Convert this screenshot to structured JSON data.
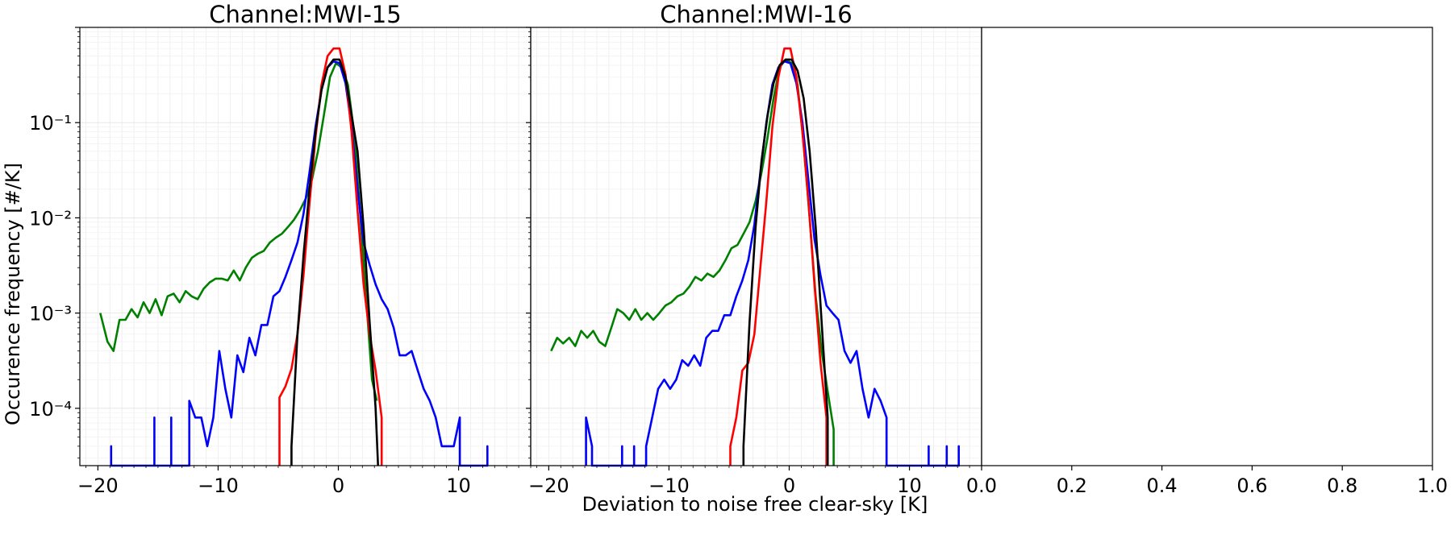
{
  "figure": {
    "xlabel": "Deviation to noise free clear-sky [K]",
    "ylabel": "Occurence frequency [#/K]"
  },
  "chart_data": [
    {
      "type": "line",
      "title": "Channel:MWI-15",
      "yscale": "log",
      "ylim": [
        2.5e-05,
        1.0
      ],
      "xlim": [
        -21.5,
        16.0
      ],
      "xticks": [
        -20,
        -10,
        0,
        10
      ],
      "xtick_labels": [
        "−20",
        "−10",
        "0",
        "10"
      ],
      "yticks": [
        0.0001,
        0.001,
        0.01,
        0.1
      ],
      "ytick_labels": [
        "10⁻⁴",
        "10⁻³",
        "10⁻²",
        "10⁻¹"
      ],
      "grid": true,
      "series": [
        {
          "color": "#008000",
          "x": [
            -19.8,
            -19.2,
            -18.7,
            -18.2,
            -17.7,
            -17.2,
            -16.7,
            -16.2,
            -15.7,
            -15.2,
            -14.7,
            -14.2,
            -13.7,
            -13.2,
            -12.7,
            -12.2,
            -11.7,
            -11.2,
            -10.7,
            -10.2,
            -9.7,
            -9.2,
            -8.7,
            -8.2,
            -7.7,
            -7.2,
            -6.7,
            -6.2,
            -5.7,
            -5.2,
            -4.7,
            -4.2,
            -3.7,
            -3.2,
            -2.7,
            -2.2,
            -1.7,
            -1.2,
            -0.7,
            -0.2,
            0.3,
            0.8,
            1.3,
            1.8,
            2.3,
            2.8,
            3.2
          ],
          "y": [
            0.001,
            0.0005,
            0.0004,
            0.00085,
            0.00085,
            0.0011,
            0.0009,
            0.0013,
            0.001,
            0.0014,
            0.00095,
            0.0015,
            0.0016,
            0.0013,
            0.0017,
            0.0015,
            0.0014,
            0.0018,
            0.0021,
            0.0023,
            0.0023,
            0.0022,
            0.0028,
            0.0022,
            0.003,
            0.0038,
            0.0042,
            0.0045,
            0.0055,
            0.0062,
            0.0068,
            0.008,
            0.0095,
            0.012,
            0.016,
            0.025,
            0.05,
            0.12,
            0.3,
            0.42,
            0.38,
            0.25,
            0.08,
            0.012,
            0.0015,
            0.0002,
            0.00012
          ]
        },
        {
          "color": "#0000ff",
          "x": [
            -18.9,
            -18.9,
            -18.9,
            -15.3,
            -15.3,
            -15.3,
            -13.9,
            -13.9,
            -13.9,
            -12.4,
            -12.4,
            -11.9,
            -11.4,
            -10.9,
            -10.4,
            -9.9,
            -9.4,
            -8.9,
            -8.4,
            -7.9,
            -7.4,
            -6.9,
            -6.4,
            -5.9,
            -5.4,
            -4.9,
            -4.4,
            -3.9,
            -3.4,
            -2.9,
            -2.4,
            -1.9,
            -1.4,
            -0.9,
            -0.4,
            0.1,
            0.6,
            1.1,
            1.6,
            2.1,
            2.6,
            3.1,
            3.6,
            4.1,
            4.6,
            5.1,
            5.6,
            6.1,
            6.6,
            7.1,
            7.6,
            8.1,
            8.6,
            9.1,
            9.6,
            10.1,
            10.1,
            12.4,
            12.4,
            12.4
          ],
          "y": [
            2.5e-05,
            4e-05,
            2.5e-05,
            2.5e-05,
            8e-05,
            2.5e-05,
            2.5e-05,
            8e-05,
            2.5e-05,
            2.5e-05,
            0.00012,
            8e-05,
            8e-05,
            4e-05,
            8e-05,
            0.0004,
            0.00016,
            8e-05,
            0.00036,
            0.00024,
            0.00055,
            0.00036,
            0.00075,
            0.00075,
            0.0015,
            0.0017,
            0.0024,
            0.0036,
            0.0055,
            0.011,
            0.03,
            0.09,
            0.22,
            0.38,
            0.44,
            0.42,
            0.26,
            0.09,
            0.02,
            0.0055,
            0.0032,
            0.002,
            0.0014,
            0.0011,
            0.0007,
            0.00036,
            0.00036,
            0.0004,
            0.00025,
            0.00016,
            0.00012,
            8e-05,
            4e-05,
            4e-05,
            4e-05,
            8e-05,
            2.5e-05,
            2.5e-05,
            4e-05,
            2.5e-05
          ]
        },
        {
          "color": "#ff0000",
          "x": [
            -4.9,
            -4.9,
            -4.4,
            -3.9,
            -3.4,
            -2.9,
            -2.4,
            -1.9,
            -1.4,
            -0.9,
            -0.4,
            0.1,
            0.6,
            1.1,
            1.6,
            2.1,
            2.6,
            3.1,
            3.6,
            3.6
          ],
          "y": [
            2.5e-05,
            0.00013,
            0.00017,
            0.00026,
            0.0006,
            0.0025,
            0.014,
            0.07,
            0.25,
            0.5,
            0.6,
            0.6,
            0.32,
            0.08,
            0.012,
            0.002,
            0.0006,
            0.00025,
            8e-05,
            2.5e-05
          ]
        },
        {
          "color": "#000000",
          "x": [
            -3.9,
            -3.9,
            -3.4,
            -2.9,
            -2.4,
            -1.9,
            -1.4,
            -0.9,
            -0.4,
            0.1,
            0.6,
            1.1,
            1.6,
            2.1,
            2.6,
            3.1,
            3.3
          ],
          "y": [
            2.5e-05,
            4e-05,
            0.0006,
            0.004,
            0.02,
            0.08,
            0.22,
            0.38,
            0.46,
            0.46,
            0.3,
            0.12,
            0.05,
            0.008,
            0.0008,
            0.0001,
            2.5e-05
          ]
        }
      ]
    },
    {
      "type": "line",
      "title": "Channel:MWI-16",
      "yscale": "log",
      "ylim": [
        2.5e-05,
        1.0
      ],
      "xlim": [
        -21.5,
        16.0
      ],
      "xticks": [
        -20,
        -10,
        0,
        10
      ],
      "xtick_labels": [
        "−20",
        "−10",
        "0",
        "10"
      ],
      "grid": true,
      "series": [
        {
          "color": "#008000",
          "x": [
            -19.8,
            -19.3,
            -18.8,
            -18.3,
            -17.8,
            -17.3,
            -16.8,
            -16.3,
            -15.8,
            -15.3,
            -14.8,
            -14.3,
            -13.8,
            -13.3,
            -12.8,
            -12.3,
            -11.8,
            -11.3,
            -10.8,
            -10.3,
            -9.8,
            -9.3,
            -8.8,
            -8.3,
            -7.8,
            -7.3,
            -6.8,
            -6.3,
            -5.8,
            -5.3,
            -4.8,
            -4.3,
            -3.8,
            -3.3,
            -2.8,
            -2.3,
            -1.8,
            -1.3,
            -0.8,
            -0.3,
            0.2,
            0.7,
            1.2,
            1.7,
            2.2,
            2.7,
            3.2,
            3.7,
            3.7
          ],
          "y": [
            0.0004,
            0.00055,
            0.00048,
            0.00055,
            0.00045,
            0.00065,
            0.00055,
            0.00065,
            0.0005,
            0.00045,
            0.0007,
            0.0011,
            0.001,
            0.00085,
            0.0011,
            0.00085,
            0.001,
            0.00085,
            0.001,
            0.0012,
            0.0013,
            0.0015,
            0.0016,
            0.0019,
            0.0024,
            0.0022,
            0.0026,
            0.0024,
            0.0028,
            0.0036,
            0.0048,
            0.0052,
            0.0068,
            0.009,
            0.015,
            0.03,
            0.07,
            0.18,
            0.38,
            0.46,
            0.42,
            0.25,
            0.06,
            0.01,
            0.0015,
            0.0004,
            0.00015,
            6e-05,
            2.5e-05
          ]
        },
        {
          "color": "#0000ff",
          "x": [
            -16.9,
            -16.9,
            -16.4,
            -16.4,
            -13.9,
            -13.9,
            -13.9,
            -12.9,
            -12.9,
            -12.9,
            -11.9,
            -11.9,
            -11.4,
            -10.9,
            -10.4,
            -9.9,
            -9.4,
            -8.9,
            -8.4,
            -7.9,
            -7.4,
            -6.9,
            -6.4,
            -5.9,
            -5.4,
            -4.9,
            -4.4,
            -3.9,
            -3.4,
            -2.9,
            -2.4,
            -1.9,
            -1.4,
            -0.9,
            -0.4,
            0.1,
            0.6,
            1.1,
            1.6,
            2.1,
            2.6,
            3.1,
            3.6,
            4.1,
            4.6,
            5.1,
            5.6,
            6.1,
            6.6,
            7.1,
            7.6,
            8.1,
            8.1,
            11.6,
            11.6,
            11.6,
            13.1,
            13.1,
            13.1,
            14.1,
            14.1,
            14.1
          ],
          "y": [
            2.5e-05,
            8e-05,
            4e-05,
            2.5e-05,
            2.5e-05,
            4e-05,
            2.5e-05,
            2.5e-05,
            4e-05,
            2.5e-05,
            2.5e-05,
            4e-05,
            8e-05,
            0.00016,
            0.0002,
            0.00016,
            0.0002,
            0.00032,
            0.00028,
            0.00036,
            0.00028,
            0.00055,
            0.00065,
            0.00065,
            0.00095,
            0.00095,
            0.0015,
            0.0022,
            0.0036,
            0.0085,
            0.03,
            0.1,
            0.25,
            0.38,
            0.44,
            0.42,
            0.26,
            0.1,
            0.025,
            0.006,
            0.0025,
            0.0012,
            0.001,
            0.00085,
            0.0004,
            0.0003,
            0.0004,
            0.00016,
            8e-05,
            0.00016,
            0.00012,
            8e-05,
            2.5e-05,
            2.5e-05,
            4e-05,
            2.5e-05,
            2.5e-05,
            4e-05,
            2.5e-05,
            2.5e-05,
            4e-05,
            2.5e-05
          ]
        },
        {
          "color": "#ff0000",
          "x": [
            -4.9,
            -4.9,
            -4.4,
            -3.9,
            -3.4,
            -2.9,
            -2.4,
            -1.9,
            -1.4,
            -0.9,
            -0.4,
            0.1,
            0.6,
            1.1,
            1.6,
            2.1,
            2.6,
            3.1,
            3.1
          ],
          "y": [
            2.5e-05,
            4e-05,
            8e-05,
            0.00025,
            0.0003,
            0.0006,
            0.003,
            0.015,
            0.09,
            0.3,
            0.6,
            0.6,
            0.3,
            0.08,
            0.015,
            0.002,
            0.0003,
            8e-05,
            2.5e-05
          ]
        },
        {
          "color": "#000000",
          "x": [
            -3.8,
            -3.8,
            -3.3,
            -2.8,
            -2.3,
            -1.8,
            -1.3,
            -0.8,
            -0.3,
            0.2,
            0.7,
            1.2,
            1.7,
            2.2,
            2.7,
            3.2,
            3.2
          ],
          "y": [
            2.5e-05,
            4e-05,
            0.0008,
            0.008,
            0.04,
            0.12,
            0.26,
            0.4,
            0.46,
            0.46,
            0.35,
            0.18,
            0.05,
            0.008,
            0.0008,
            8e-05,
            2.5e-05
          ]
        }
      ]
    },
    {
      "type": "line",
      "title": "",
      "xlim": [
        0.0,
        1.0
      ],
      "xticks": [
        0.0,
        0.2,
        0.4,
        0.6,
        0.8,
        1.0
      ],
      "xtick_labels": [
        "0.0",
        "0.2",
        "0.4",
        "0.6",
        "0.8",
        "1.0"
      ],
      "grid": false,
      "series": []
    }
  ]
}
